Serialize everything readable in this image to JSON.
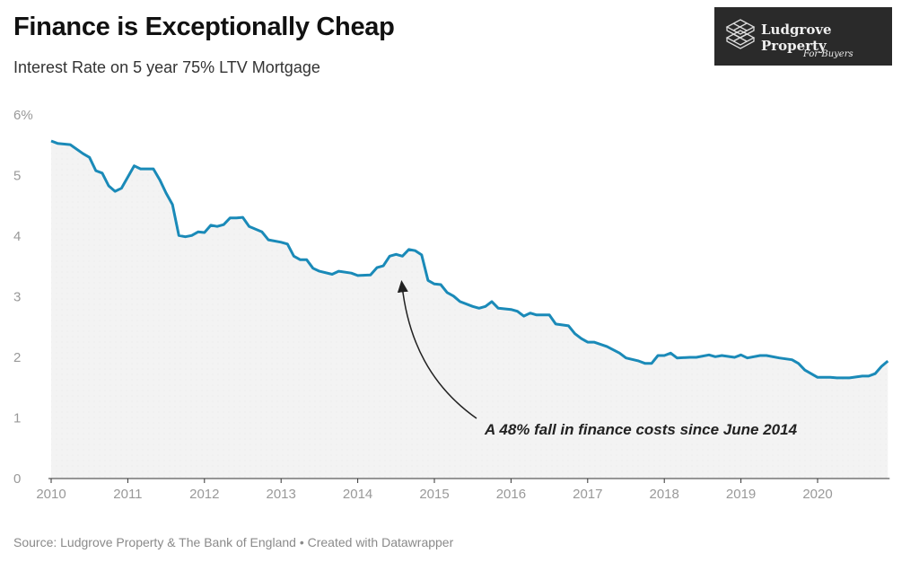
{
  "header": {
    "title": "Finance is Exceptionally Cheap",
    "subtitle": "Interest Rate on 5 year 75% LTV Mortgage"
  },
  "logo": {
    "name": "Ludgrove Property",
    "tagline": "For Buyers",
    "background": "#2a2a2a"
  },
  "footer": {
    "source": "Source: Ludgrove Property & The Bank of England • Created with Datawrapper"
  },
  "chart_data": {
    "type": "area",
    "title": "Finance is Exceptionally Cheap",
    "subtitle": "Interest Rate on 5 year 75% LTV Mortgage",
    "xlabel": "",
    "ylabel": "",
    "xlim": [
      "2010-01",
      "2021-01"
    ],
    "ylim": [
      0,
      6
    ],
    "y_unit": "%",
    "grid": false,
    "line_color": "#1a8ab8",
    "fill_color": "#f3f3f3",
    "x_ticks": [
      "2010",
      "2011",
      "2012",
      "2013",
      "2014",
      "2015",
      "2016",
      "2017",
      "2018",
      "2019",
      "2020"
    ],
    "y_ticks": [
      "0",
      "1",
      "2",
      "3",
      "4",
      "5",
      "6%"
    ],
    "annotation": {
      "text": "A 48% fall in finance costs since June 2014",
      "target": "2014-06"
    },
    "x": [
      "2010-01",
      "2010-02",
      "2010-04",
      "2010-06",
      "2010-07",
      "2010-08",
      "2010-09",
      "2010-10",
      "2010-11",
      "2010-12",
      "2011-02",
      "2011-03",
      "2011-05",
      "2011-06",
      "2011-07",
      "2011-08",
      "2011-09",
      "2011-10",
      "2011-11",
      "2011-12",
      "2012-01",
      "2012-02",
      "2012-03",
      "2012-04",
      "2012-05",
      "2012-06",
      "2012-07",
      "2012-08",
      "2012-10",
      "2012-11",
      "2013-01",
      "2013-02",
      "2013-03",
      "2013-04",
      "2013-05",
      "2013-06",
      "2013-07",
      "2013-09",
      "2013-10",
      "2013-12",
      "2014-01",
      "2014-03",
      "2014-04",
      "2014-05",
      "2014-06",
      "2014-07",
      "2014-08",
      "2014-09",
      "2014-10",
      "2014-11",
      "2014-12",
      "2015-01",
      "2015-02",
      "2015-03",
      "2015-04",
      "2015-05",
      "2015-07",
      "2015-08",
      "2015-09",
      "2015-10",
      "2015-11",
      "2016-01",
      "2016-02",
      "2016-03",
      "2016-04",
      "2016-05",
      "2016-07",
      "2016-08",
      "2016-10",
      "2016-11",
      "2016-12",
      "2017-01",
      "2017-02",
      "2017-04",
      "2017-06",
      "2017-07",
      "2017-09",
      "2017-10",
      "2017-11",
      "2017-12",
      "2018-01",
      "2018-02",
      "2018-03",
      "2018-05",
      "2018-06",
      "2018-08",
      "2018-09",
      "2018-10",
      "2018-12",
      "2019-01",
      "2019-02",
      "2019-04",
      "2019-05",
      "2019-07",
      "2019-09",
      "2019-10",
      "2019-11",
      "2020-01",
      "2020-03",
      "2020-04",
      "2020-06",
      "2020-08",
      "2020-09",
      "2020-10",
      "2020-11",
      "2020-12"
    ],
    "values": [
      5.57,
      5.53,
      5.51,
      5.36,
      5.3,
      5.08,
      5.04,
      4.83,
      4.74,
      4.79,
      5.16,
      5.11,
      5.11,
      4.93,
      4.71,
      4.52,
      4.01,
      3.99,
      4.01,
      4.07,
      4.06,
      4.18,
      4.16,
      4.19,
      4.3,
      4.3,
      4.31,
      4.16,
      4.07,
      3.94,
      3.9,
      3.87,
      3.67,
      3.61,
      3.61,
      3.47,
      3.42,
      3.37,
      3.42,
      3.39,
      3.35,
      3.36,
      3.48,
      3.51,
      3.67,
      3.7,
      3.67,
      3.78,
      3.76,
      3.69,
      3.27,
      3.21,
      3.2,
      3.07,
      3.01,
      2.92,
      2.84,
      2.81,
      2.84,
      2.92,
      2.81,
      2.79,
      2.76,
      2.68,
      2.73,
      2.7,
      2.7,
      2.55,
      2.52,
      2.39,
      2.31,
      2.25,
      2.25,
      2.18,
      2.07,
      1.99,
      1.94,
      1.9,
      1.9,
      2.03,
      2.03,
      2.07,
      1.99,
      2.0,
      2.0,
      2.04,
      2.01,
      2.03,
      2.0,
      2.04,
      1.99,
      2.03,
      2.03,
      1.99,
      1.96,
      1.9,
      1.79,
      1.67,
      1.67,
      1.66,
      1.66,
      1.69,
      1.69,
      1.73,
      1.85,
      1.94
    ]
  }
}
